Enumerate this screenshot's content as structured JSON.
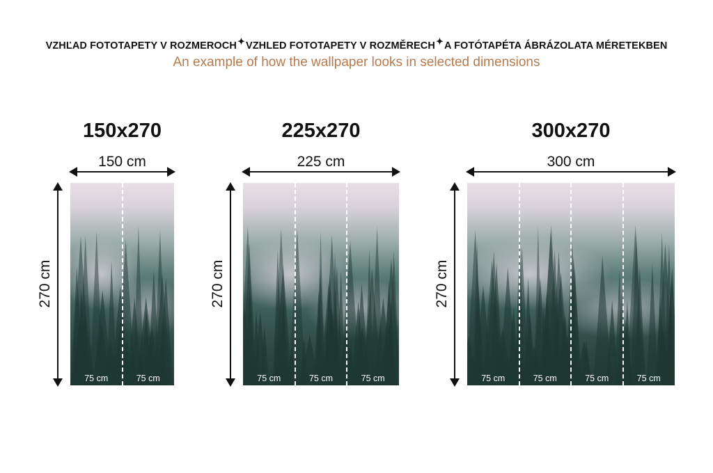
{
  "header": {
    "title_parts": [
      "VZHĽAD FOTOTAPETY V ROZMEROCH",
      "VZHLED FOTOTAPETY V ROZMĚRECH",
      "A FOTÓTAPÉTA ÁBRÁZOLATA MÉRETEKBEN"
    ],
    "separator_icon": "sparkle-icon",
    "subtitle": "An example of how the wallpaper looks in selected dimensions",
    "subtitle_color": "#b8794a"
  },
  "panels": [
    {
      "title": "150x270",
      "width_label": "150 cm",
      "height_label": "270 cm",
      "strips": [
        "75 cm",
        "75 cm"
      ]
    },
    {
      "title": "225x270",
      "width_label": "225 cm",
      "height_label": "270 cm",
      "strips": [
        "75 cm",
        "75 cm",
        "75 cm"
      ]
    },
    {
      "title": "300x270",
      "width_label": "300 cm",
      "height_label": "270 cm",
      "strips": [
        "75 cm",
        "75 cm",
        "75 cm",
        "75 cm"
      ]
    }
  ]
}
